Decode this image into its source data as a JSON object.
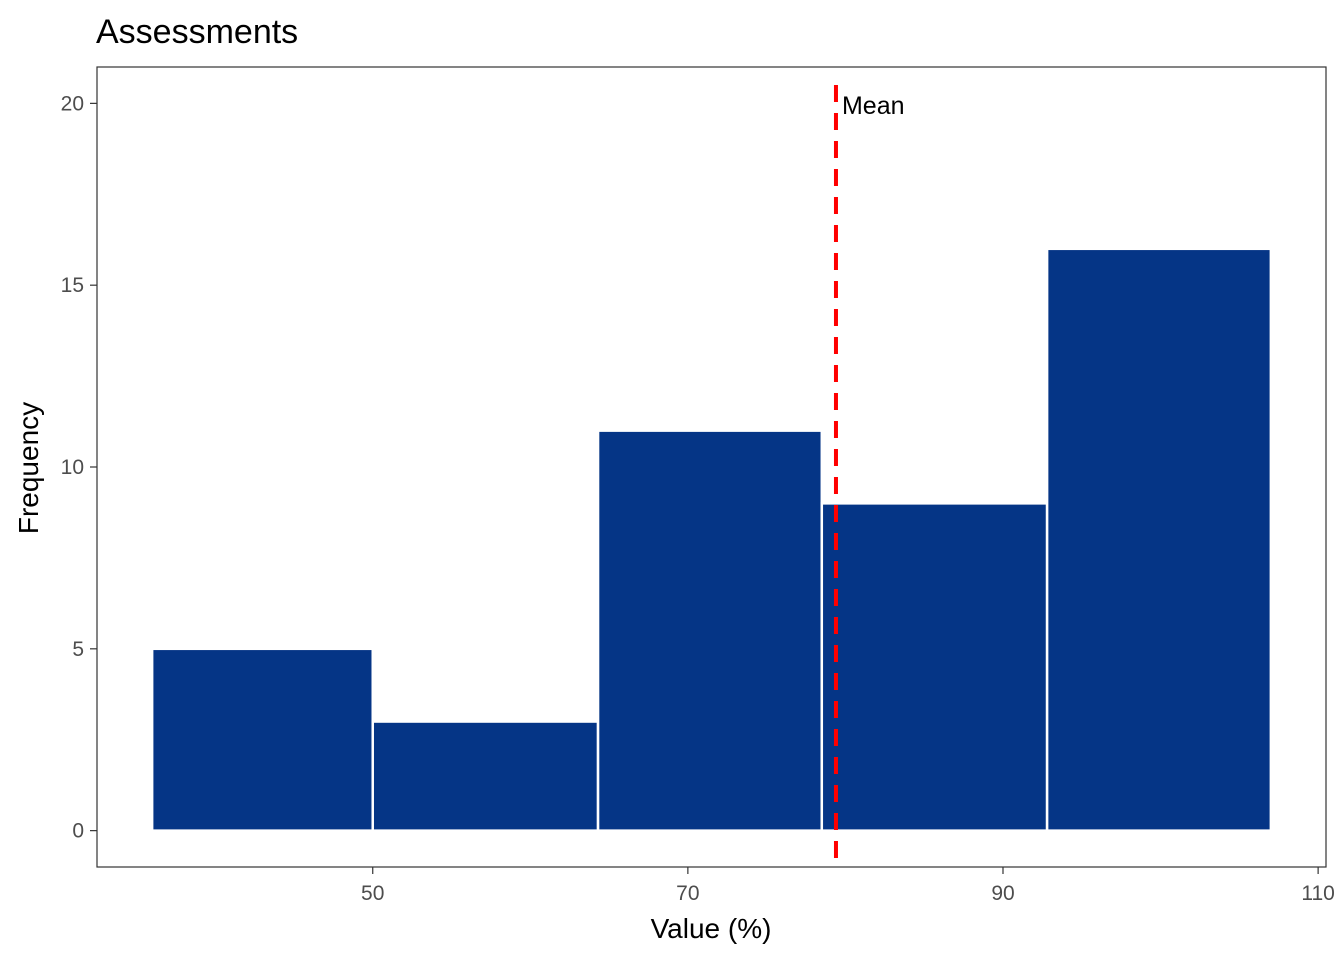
{
  "chart_data": {
    "type": "bar",
    "title": "Assessments",
    "xlabel": "Value (%)",
    "ylabel": "Frequency",
    "bins": [
      {
        "x0": 36.0,
        "x1": 50.0,
        "count": 5
      },
      {
        "x0": 50.0,
        "x1": 64.3,
        "count": 3
      },
      {
        "x0": 64.3,
        "x1": 78.5,
        "count": 11
      },
      {
        "x0": 78.5,
        "x1": 92.8,
        "count": 9
      },
      {
        "x0": 92.8,
        "x1": 107.0,
        "count": 16
      }
    ],
    "xlim": [
      32.5,
      110.5
    ],
    "ylim": [
      -1,
      21
    ],
    "xticks": [
      50,
      70,
      90,
      110
    ],
    "yticks": [
      0,
      5,
      10,
      15,
      20
    ],
    "mean_line": {
      "value": 79.4,
      "label": "Mean",
      "color": "#ff0000"
    },
    "bar_color": "#053586",
    "bar_edge_color": "#ffffff",
    "grid": false,
    "legend": "none"
  }
}
